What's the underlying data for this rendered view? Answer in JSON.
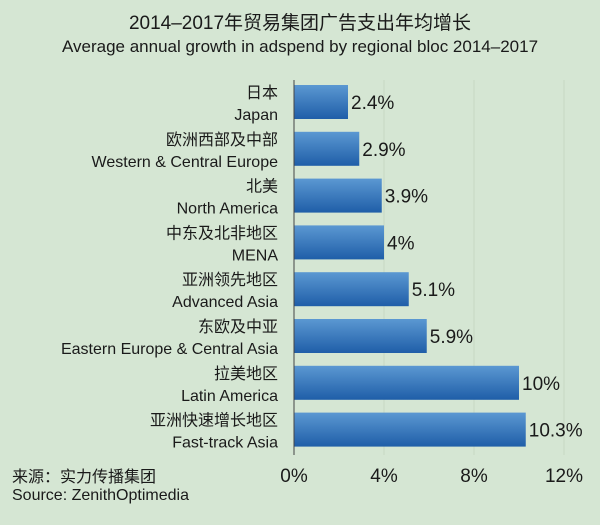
{
  "chart_data": {
    "type": "bar",
    "orientation": "horizontal",
    "title": "2014–2017年贸易集团广告支出年均增长",
    "subtitle": "Average annual growth in adspend by regional bloc 2014–2017",
    "categories": [
      {
        "zh": "日本",
        "en": "Japan"
      },
      {
        "zh": "欧洲西部及中部",
        "en": "Western & Central Europe"
      },
      {
        "zh": "北美",
        "en": "North America"
      },
      {
        "zh": "中东及北非地区",
        "en": "MENA"
      },
      {
        "zh": "亚洲领先地区",
        "en": "Advanced Asia"
      },
      {
        "zh": "东欧及中亚",
        "en": "Eastern Europe & Central Asia"
      },
      {
        "zh": "拉美地区",
        "en": "Latin America"
      },
      {
        "zh": "亚洲快速增长地区",
        "en": "Fast-track Asia"
      }
    ],
    "values": [
      2.4,
      2.9,
      3.9,
      4,
      5.1,
      5.9,
      10,
      10.3
    ],
    "data_labels": [
      "2.4%",
      "2.9%",
      "3.9%",
      "4%",
      "5.1%",
      "5.9%",
      "10%",
      "10.3%"
    ],
    "xlim": [
      0,
      12
    ],
    "xticks": [
      0,
      4,
      8,
      12
    ],
    "xtick_labels": [
      "0%",
      "4%",
      "8%",
      "12%"
    ],
    "grid": "vertical",
    "colors": {
      "background": "#d5e6d3",
      "bar_top": "#5b98d2",
      "bar_bottom": "#1f5ea8"
    }
  },
  "source": {
    "zh": "来源：实力传播集团",
    "en": "Source: ZenithOptimedia"
  }
}
